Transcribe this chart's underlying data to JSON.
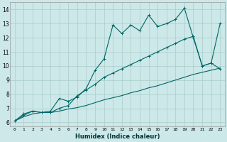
{
  "title": "",
  "xlabel": "Humidex (Indice chaleur)",
  "bg_color": "#cce8e8",
  "grid_color": "#aacccc",
  "line_color": "#006666",
  "xlim": [
    -0.5,
    23.5
  ],
  "ylim": [
    5.7,
    14.5
  ],
  "xticks": [
    0,
    1,
    2,
    3,
    4,
    5,
    6,
    7,
    8,
    9,
    10,
    11,
    12,
    13,
    14,
    15,
    16,
    17,
    18,
    19,
    20,
    21,
    22,
    23
  ],
  "yticks": [
    6,
    7,
    8,
    9,
    10,
    11,
    12,
    13,
    14
  ],
  "line1_x": [
    0,
    1,
    2,
    3,
    4,
    5,
    6,
    7,
    8,
    9,
    10,
    11,
    12,
    13,
    14,
    15,
    16,
    17,
    18,
    19,
    20,
    21,
    22,
    23
  ],
  "line1_y": [
    6.1,
    6.6,
    6.8,
    6.7,
    6.8,
    7.7,
    7.5,
    7.8,
    8.4,
    9.7,
    10.5,
    12.9,
    12.3,
    12.9,
    12.5,
    13.6,
    12.8,
    13.0,
    13.3,
    14.1,
    12.0,
    10.0,
    10.2,
    13.0
  ],
  "line2_x": [
    0,
    1,
    2,
    3,
    4,
    5,
    6,
    7,
    8,
    9,
    10,
    11,
    12,
    13,
    14,
    15,
    16,
    17,
    18,
    19,
    20,
    21,
    22,
    23
  ],
  "line2_y": [
    6.1,
    6.5,
    6.8,
    6.7,
    6.7,
    7.0,
    7.2,
    7.9,
    8.3,
    8.7,
    9.2,
    9.5,
    9.8,
    10.1,
    10.4,
    10.7,
    11.0,
    11.3,
    11.6,
    11.9,
    12.1,
    10.0,
    10.2,
    9.8
  ],
  "line3_x": [
    0,
    1,
    2,
    3,
    4,
    5,
    6,
    7,
    8,
    9,
    10,
    11,
    12,
    13,
    14,
    15,
    16,
    17,
    18,
    19,
    20,
    21,
    22,
    23
  ],
  "line3_y": [
    6.1,
    6.4,
    6.6,
    6.7,
    6.7,
    6.8,
    6.95,
    7.05,
    7.2,
    7.4,
    7.6,
    7.75,
    7.9,
    8.1,
    8.25,
    8.45,
    8.6,
    8.8,
    9.0,
    9.2,
    9.4,
    9.55,
    9.7,
    9.85
  ]
}
